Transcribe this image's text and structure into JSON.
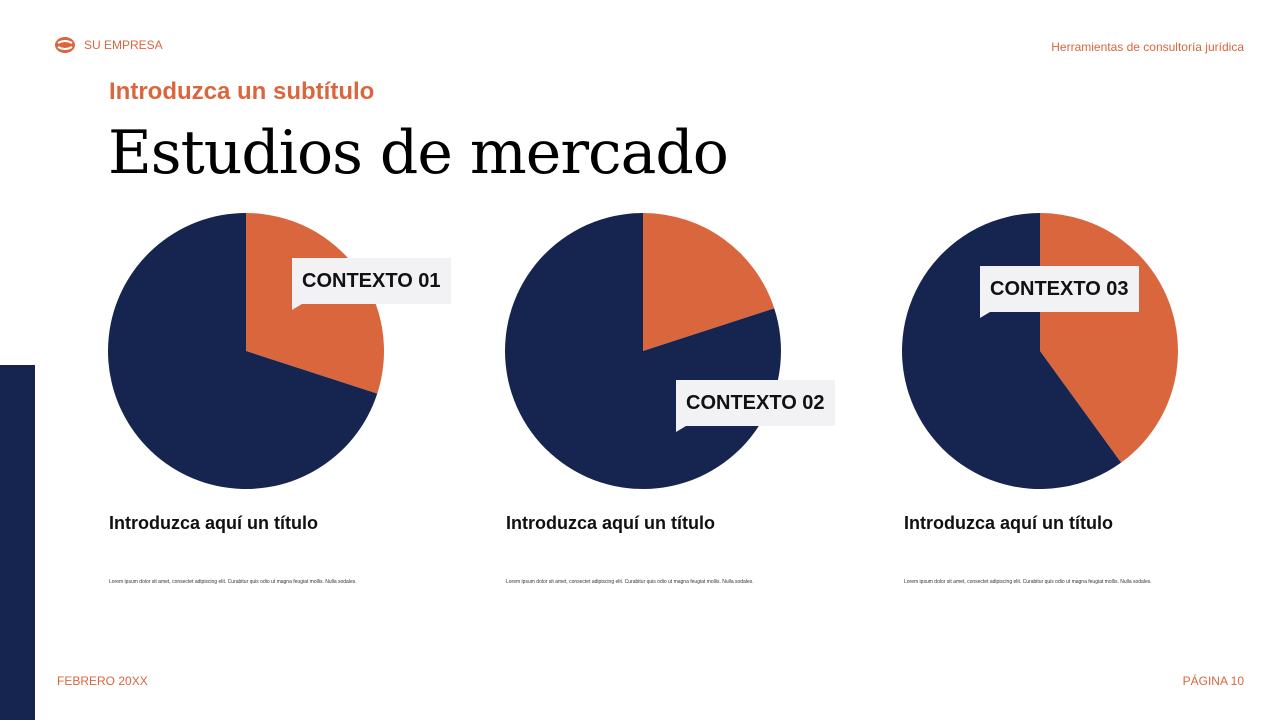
{
  "header": {
    "company": "SU EMPRESA",
    "tool_name": "Herramientas de consultoría jurídica"
  },
  "subtitle": "Introduzca un subtítulo",
  "title": "Estudios de mercado",
  "colors": {
    "accent": "#d9663d",
    "navy": "#16254f"
  },
  "chart_data": [
    {
      "type": "pie",
      "callout": "CONTEXTO 01",
      "values": [
        30,
        70
      ],
      "colors": [
        "#d9663d",
        "#16254f"
      ]
    },
    {
      "type": "pie",
      "callout": "CONTEXTO 02",
      "values": [
        20,
        80
      ],
      "colors": [
        "#d9663d",
        "#16254f"
      ]
    },
    {
      "type": "pie",
      "callout": "CONTEXTO 03",
      "values": [
        40,
        60
      ],
      "colors": [
        "#d9663d",
        "#16254f"
      ]
    }
  ],
  "cards": [
    {
      "title": "Introduzca aquí un título",
      "body": "Lorem ipsum dolor sit amet, consectet adipiscing elit. Curabitur quis odio ut magna feugiat mollis. Nulla sodales."
    },
    {
      "title": "Introduzca aquí un título",
      "body": "Lorem ipsum dolor sit amet, consectet adipiscing elit. Curabitur quis odio ut magna feugiat mollis. Nulla sodales."
    },
    {
      "title": "Introduzca aquí un título",
      "body": "Lorem ipsum dolor sit amet, consectet adipiscing elit. Curabitur quis odio ut magna feugiat mollis. Nulla sodales."
    }
  ],
  "footer": {
    "date": "FEBRERO 20XX",
    "page": "PÁGINA 10"
  }
}
